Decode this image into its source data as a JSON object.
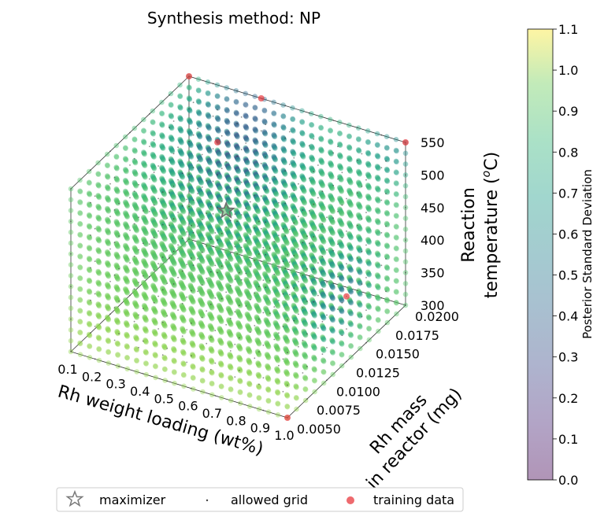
{
  "chart_data": {
    "type": "scatter",
    "title": "Synthesis method: NP",
    "x_axis": {
      "label": "Rh weight loading (wt%)",
      "ticks": [
        "0.1",
        "0.2",
        "0.3",
        "0.4",
        "0.5",
        "0.6",
        "0.7",
        "0.8",
        "0.9",
        "1.0"
      ],
      "range": [
        0.1,
        1.0
      ]
    },
    "y_axis": {
      "label_line1": "Rh mass",
      "label_line2": "in reactor (mg)",
      "ticks": [
        "0.0050",
        "0.0075",
        "0.0100",
        "0.0125",
        "0.0150",
        "0.0175",
        "0.0200"
      ],
      "range": [
        0.005,
        0.02
      ]
    },
    "z_axis": {
      "label_line1": "Reaction",
      "label_line2_prefix": "temperature (",
      "label_line2_sup": "o",
      "label_line2_suffix": "C)",
      "ticks": [
        "300",
        "350",
        "400",
        "450",
        "500",
        "550"
      ],
      "range": [
        300,
        550
      ]
    },
    "colorbar": {
      "label": "Posterior Standard Deviation",
      "ticks": [
        "0.0",
        "0.1",
        "0.2",
        "0.3",
        "0.4",
        "0.5",
        "0.6",
        "0.7",
        "0.8",
        "0.9",
        "1.0",
        "1.1"
      ],
      "range": [
        0.0,
        1.1
      ],
      "colormap": "viridis"
    },
    "legend": {
      "placement": "bottom-center",
      "entries": [
        {
          "label": "maximizer",
          "marker": "star"
        },
        {
          "label": "allowed grid",
          "marker": "dot"
        },
        {
          "label": "training data",
          "marker": "circle"
        }
      ]
    },
    "maximizer": {
      "x": 0.5,
      "y": 0.0125,
      "z": 475
    },
    "training_data": [
      {
        "x": 0.1,
        "y": 0.02,
        "z": 550
      },
      {
        "x": 0.4,
        "y": 0.02,
        "z": 550
      },
      {
        "x": 1.0,
        "y": 0.02,
        "z": 550
      },
      {
        "x": 0.3,
        "y": 0.0175,
        "z": 500
      },
      {
        "x": 1.0,
        "y": 0.005,
        "z": 300
      },
      {
        "x": 1.0,
        "y": 0.0125,
        "z": 400
      }
    ],
    "colors": {
      "training": "#e8383d",
      "maximizer_edge": "#6b6b6b",
      "maximizer_fill": "#5fb06a"
    }
  }
}
